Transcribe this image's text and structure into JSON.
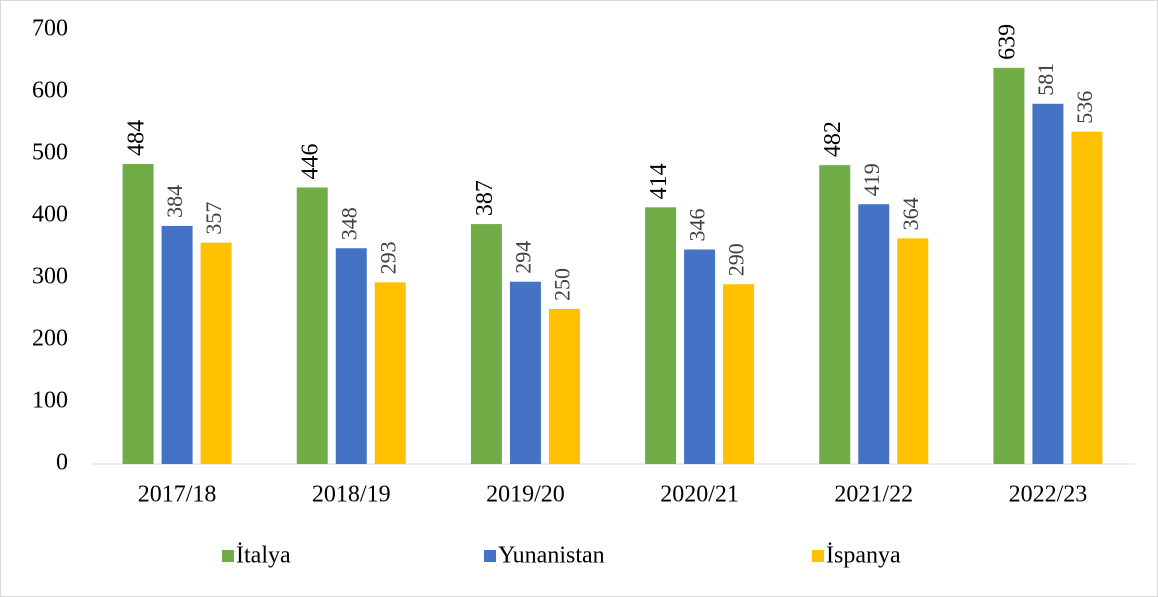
{
  "chart_data": {
    "type": "bar",
    "categories": [
      "2017/18",
      "2018/19",
      "2019/20",
      "2020/21",
      "2021/22",
      "2022/23"
    ],
    "series": [
      {
        "name": "İtalya",
        "color": "#70ad47",
        "values": [
          484,
          446,
          387,
          414,
          482,
          639
        ]
      },
      {
        "name": "Yunanistan",
        "color": "#4472c4",
        "values": [
          384,
          348,
          294,
          346,
          419,
          581
        ]
      },
      {
        "name": "İspanya",
        "color": "#ffc000",
        "values": [
          357,
          293,
          250,
          290,
          364,
          536
        ]
      }
    ],
    "ylim": [
      0,
      700
    ],
    "yticks": [
      0,
      100,
      200,
      300,
      400,
      500,
      600,
      700
    ],
    "grid": false,
    "legend": "bottom",
    "data_labels": true
  }
}
